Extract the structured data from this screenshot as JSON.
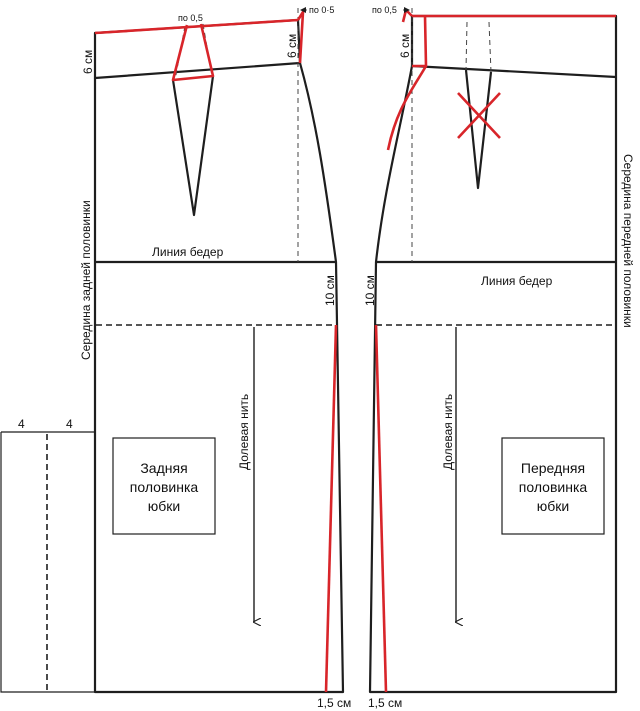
{
  "back": {
    "center_label": "Середина задней половинки",
    "hip_line": "Линия бедер",
    "grain": "Долевая нить",
    "title_lines": [
      "Задняя",
      "половинка",
      "юбки"
    ],
    "dim_waist_left": "6 см",
    "dim_waist_side": "6 см",
    "dim_side_hip": "10 см",
    "dart_shift": "по 0,5",
    "side_shift": "по 0·5",
    "hem_shift": "1,5 см"
  },
  "front": {
    "center_label": "Середина передней половинки",
    "hip_line": "Линия бедер",
    "grain": "Долевая нить",
    "title_lines": [
      "Передняя",
      "половинка",
      "юбки"
    ],
    "dim_waist_side": "6 см",
    "dim_side_hip": "10 см",
    "side_shift": "по 0,5",
    "hem_shift": "1,5 см"
  },
  "slit": {
    "dim_left": "4",
    "dim_right": "4"
  },
  "colors": {
    "outline": "#1e1e1e",
    "modification": "#d8252a"
  }
}
